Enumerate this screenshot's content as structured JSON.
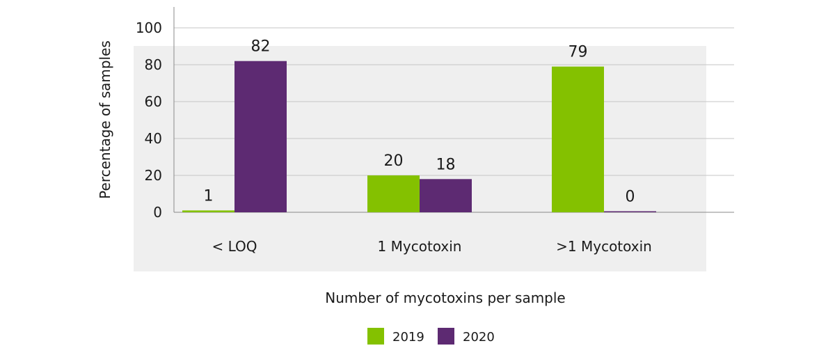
{
  "chart_data": {
    "type": "bar",
    "xlabel": "Number of mycotoxins per sample",
    "ylabel": "Percentage of samples",
    "categories": [
      "< LOQ",
      "1 Mycotoxin",
      ">1 Mycotoxin"
    ],
    "series": [
      {
        "name": "2019",
        "color": "#84c100",
        "values": [
          1,
          20,
          79
        ]
      },
      {
        "name": "2020",
        "color": "#5d2a72",
        "values": [
          82,
          18,
          0
        ]
      }
    ],
    "yticks": [
      0,
      20,
      40,
      60,
      80,
      100
    ],
    "ylim": [
      0,
      100
    ],
    "grid": true,
    "legend_position": "bottom"
  }
}
